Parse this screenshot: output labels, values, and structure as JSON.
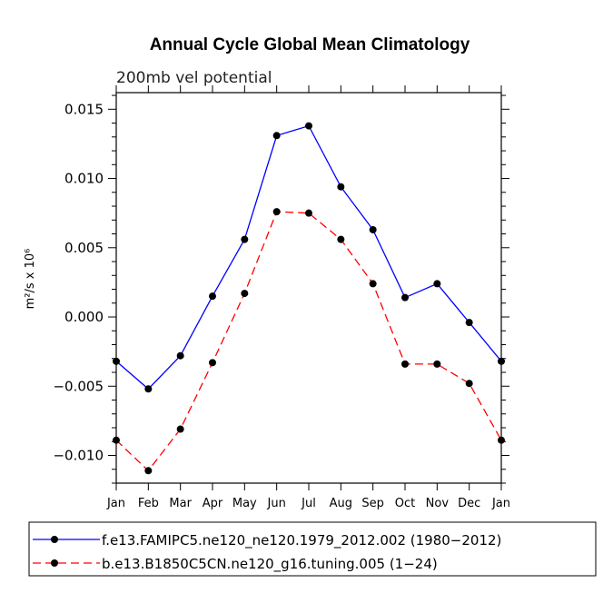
{
  "chart_data": {
    "type": "line",
    "title": "Annual Cycle Global Mean Climatology",
    "subtitle": "200mb vel potential",
    "ylabel": "m²/s x 10⁶",
    "ylim": [
      -0.012,
      0.0162
    ],
    "yticks": [
      0.015,
      0.01,
      0.005,
      0.0,
      -0.005,
      -0.01
    ],
    "ytick_labels": [
      "0.015",
      "0.010",
      "0.005",
      "0.000",
      "−0.005",
      "−0.010"
    ],
    "categories": [
      "Jan",
      "Feb",
      "Mar",
      "Apr",
      "May",
      "Jun",
      "Jul",
      "Aug",
      "Sep",
      "Oct",
      "Nov",
      "Dec",
      "Jan"
    ],
    "series": [
      {
        "name": "f.e13.FAMIPC5.ne120_ne120.1979_2012.002 (1980−2012)",
        "color": "#0000ff",
        "dash": "solid",
        "values": [
          -0.0032,
          -0.0052,
          -0.0028,
          0.0015,
          0.0056,
          0.0131,
          0.0138,
          0.0094,
          0.0063,
          0.0014,
          0.0024,
          -0.0004,
          -0.0032
        ]
      },
      {
        "name": "b.e13.B1850C5CN.ne120_g16.tuning.005 (1−24)",
        "color": "#ff0000",
        "dash": "dashed",
        "values": [
          -0.0089,
          -0.0111,
          -0.0081,
          -0.0033,
          0.0017,
          0.0076,
          0.0075,
          0.0056,
          0.0024,
          -0.0034,
          -0.0034,
          -0.0048,
          -0.0089
        ]
      }
    ],
    "legend_position": "bottom"
  }
}
